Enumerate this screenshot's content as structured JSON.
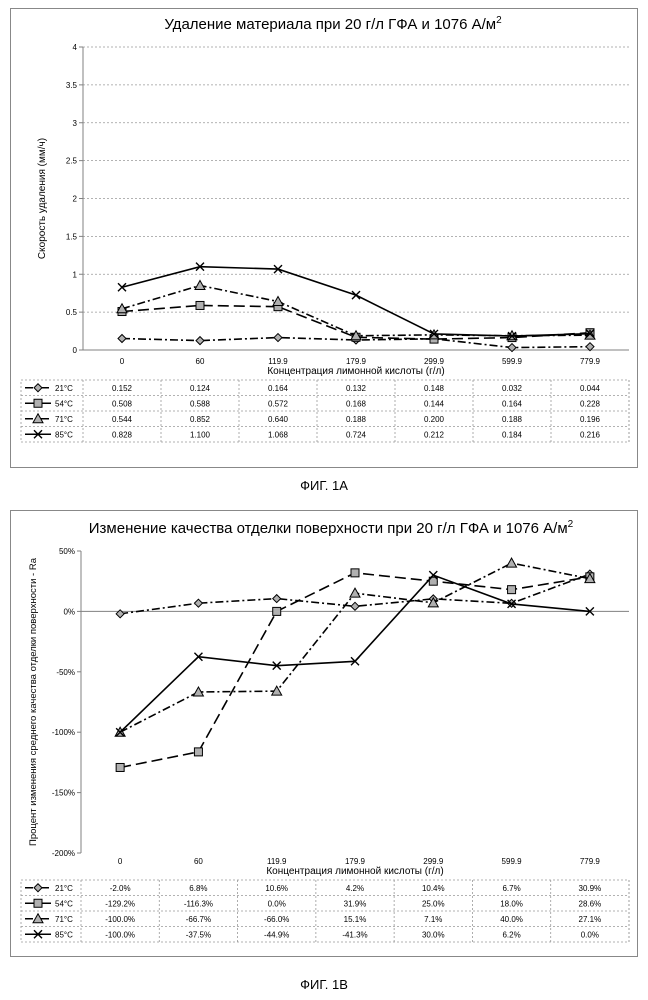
{
  "figures": [
    {
      "label": "ФИГ. 1А",
      "chart_data": {
        "type": "line",
        "title": "Удаление материала при 20 г/л ГФА и 1076 А/м",
        "title_superscript": "2",
        "xlabel": "Концентрация лимонной кислоты (г/л)",
        "ylabel": "Скорость удаления (мм/ч)",
        "categories": [
          "0",
          "60",
          "119.9",
          "179.9",
          "299.9",
          "599.9",
          "779.9"
        ],
        "ylim": [
          0,
          4
        ],
        "yticks": [
          0,
          0.5,
          1,
          1.5,
          2,
          2.5,
          3,
          3.5,
          4
        ],
        "ytick_labels": [
          "0",
          "0.5",
          "1",
          "1.5",
          "2",
          "2.5",
          "3",
          "3.5",
          "4"
        ],
        "grid": true,
        "legend": "data-table",
        "series": [
          {
            "name": "21°C",
            "marker": "diamond",
            "dash": "dashdot",
            "values": [
              0.152,
              0.124,
              0.164,
              0.132,
              0.148,
              0.032,
              0.044
            ],
            "labels": [
              "0.152",
              "0.124",
              "0.164",
              "0.132",
              "0.148",
              "0.032",
              "0.044"
            ]
          },
          {
            "name": "54°C",
            "marker": "square",
            "dash": "longdash",
            "values": [
              0.508,
              0.588,
              0.572,
              0.168,
              0.144,
              0.164,
              0.228
            ],
            "labels": [
              "0.508",
              "0.588",
              "0.572",
              "0.168",
              "0.144",
              "0.164",
              "0.228"
            ]
          },
          {
            "name": "71°C",
            "marker": "triangle",
            "dash": "dashdot",
            "values": [
              0.544,
              0.852,
              0.64,
              0.188,
              0.2,
              0.188,
              0.196
            ],
            "labels": [
              "0.544",
              "0.852",
              "0.640",
              "0.188",
              "0.200",
              "0.188",
              "0.196"
            ]
          },
          {
            "name": "85°C",
            "marker": "x",
            "dash": "solid",
            "values": [
              0.828,
              1.1,
              1.068,
              0.724,
              0.212,
              0.184,
              0.216
            ],
            "labels": [
              "0.828",
              "1.100",
              "1.068",
              "0.724",
              "0.212",
              "0.184",
              "0.216"
            ]
          }
        ]
      }
    },
    {
      "label": "ФИГ. 1В",
      "chart_data": {
        "type": "line",
        "title": "Изменение качества отделки поверхности при 20 г/л ГФА и 1076 А/м",
        "title_superscript": "2",
        "xlabel": "Концентрация лимонной кислоты (г/л)",
        "ylabel": "Процент изменения среднего качества отделки поверхности - Ra",
        "categories": [
          "0",
          "60",
          "119.9",
          "179.9",
          "299.9",
          "599.9",
          "779.9"
        ],
        "ylim": [
          -200,
          50
        ],
        "yticks": [
          -200,
          -150,
          -100,
          -50,
          0,
          50
        ],
        "ytick_labels": [
          "-200%",
          "-150%",
          "-100%",
          "-50%",
          "0%",
          "50%"
        ],
        "grid": false,
        "legend": "data-table",
        "series": [
          {
            "name": "21°C",
            "marker": "diamond",
            "dash": "dashdot",
            "values": [
              -2.0,
              6.8,
              10.6,
              4.2,
              10.4,
              6.7,
              30.9
            ],
            "labels": [
              "-2.0%",
              "6.8%",
              "10.6%",
              "4.2%",
              "10.4%",
              "6.7%",
              "30.9%"
            ]
          },
          {
            "name": "54°C",
            "marker": "square",
            "dash": "longdash",
            "values": [
              -129.2,
              -116.3,
              0.0,
              31.9,
              25.0,
              18.0,
              28.6
            ],
            "labels": [
              "-129.2%",
              "-116.3%",
              "0.0%",
              "31.9%",
              "25.0%",
              "18.0%",
              "28.6%"
            ]
          },
          {
            "name": "71°C",
            "marker": "triangle",
            "dash": "dashdot",
            "values": [
              -100.0,
              -66.7,
              -66.0,
              15.1,
              7.1,
              40.0,
              27.1
            ],
            "labels": [
              "-100.0%",
              "-66.7%",
              "-66.0%",
              "15.1%",
              "7.1%",
              "40.0%",
              "27.1%"
            ]
          },
          {
            "name": "85°C",
            "marker": "x",
            "dash": "solid",
            "values": [
              -100.0,
              -37.5,
              -44.9,
              -41.3,
              30.0,
              6.2,
              0.0
            ],
            "labels": [
              "-100.0%",
              "-37.5%",
              "-44.9%",
              "-41.3%",
              "30.0%",
              "6.2%",
              "0.0%"
            ]
          }
        ]
      }
    }
  ],
  "colors": {
    "line": "#000000",
    "marker_fill": "#b0b0b0",
    "grid": "#999999",
    "axis": "#808080"
  }
}
